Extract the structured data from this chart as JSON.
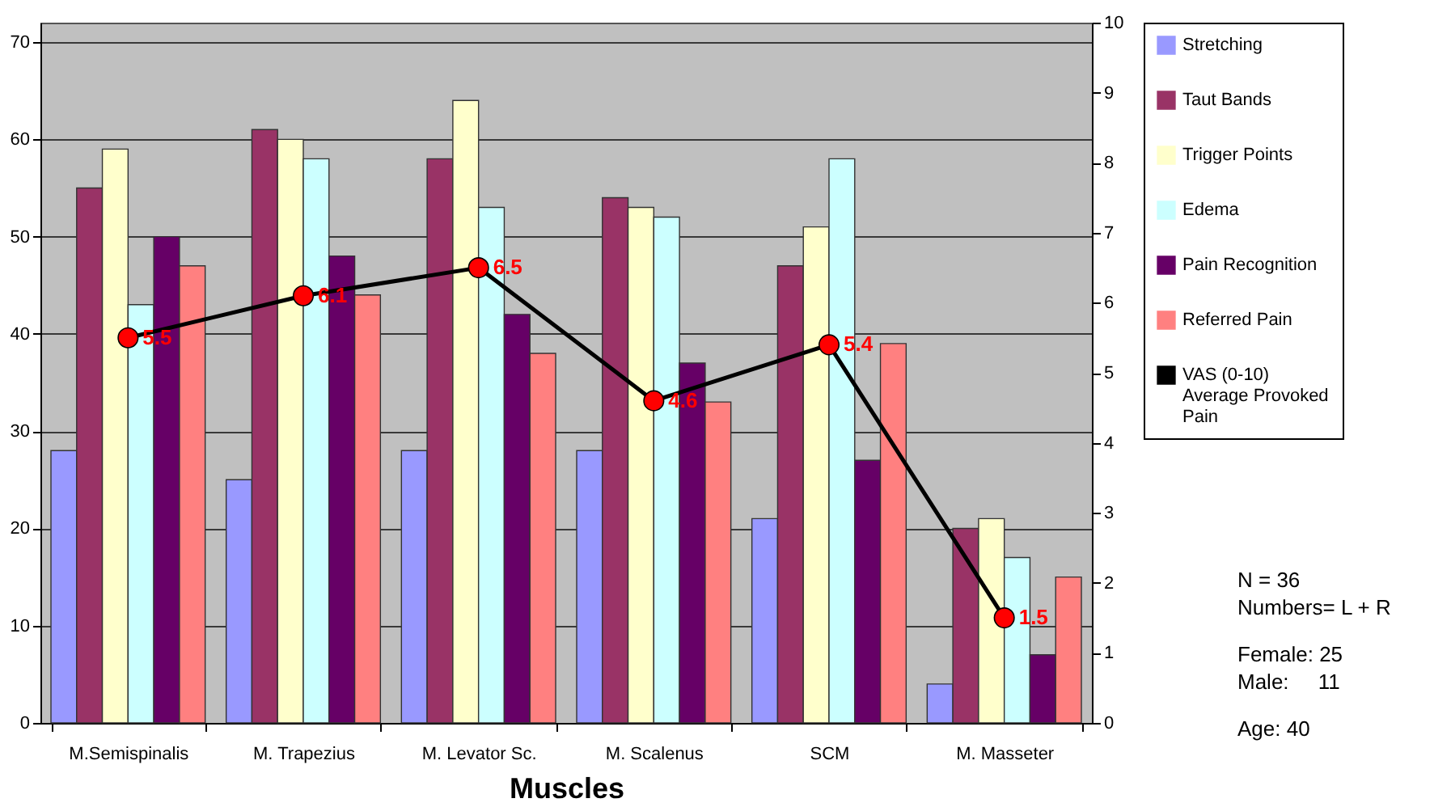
{
  "chart_data": {
    "type": "bar",
    "xlabel": "Muscles",
    "categories": [
      "M.Semispinalis",
      "M. Trapezius",
      "M. Levator Sc.",
      "M. Scalenus",
      "SCM",
      "M. Masseter"
    ],
    "series": [
      {
        "name": "Stretching",
        "color": "#9999ff",
        "values": [
          28,
          25,
          28,
          28,
          21,
          4
        ]
      },
      {
        "name": "Taut Bands",
        "color": "#993366",
        "values": [
          55,
          61,
          58,
          54,
          47,
          20
        ]
      },
      {
        "name": "Trigger Points",
        "color": "#ffffcc",
        "values": [
          59,
          60,
          64,
          53,
          51,
          21
        ]
      },
      {
        "name": "Edema",
        "color": "#ccffff",
        "values": [
          43,
          58,
          53,
          52,
          58,
          17
        ]
      },
      {
        "name": "Pain Recognition",
        "color": "#660066",
        "values": [
          50,
          48,
          42,
          37,
          27,
          7
        ]
      },
      {
        "name": "Referred Pain",
        "color": "#ff8080",
        "values": [
          47,
          44,
          38,
          33,
          39,
          15
        ]
      },
      {
        "name": "VAS (0-10) Average Provoked Pain",
        "type": "line",
        "axis": "y2",
        "color": "#000000",
        "marker": "circle",
        "values": [
          5.5,
          6.1,
          6.5,
          4.6,
          5.4,
          1.5
        ],
        "value_labels": [
          "5.5",
          "6.1",
          "6.5",
          "4.6",
          "5.4",
          "1.5"
        ]
      }
    ],
    "ylim": [
      0,
      72
    ],
    "yticks": [
      0,
      10,
      20,
      30,
      40,
      50,
      60,
      70
    ],
    "y2lim": [
      0,
      10
    ],
    "y2ticks": [
      0,
      1,
      2,
      3,
      4,
      5,
      6,
      7,
      8,
      9,
      10
    ],
    "grid": "y",
    "legend": "right",
    "annotations": [
      "N = 36",
      "Numbers= L + R",
      "Female: 25",
      "Male:     11",
      "Age: 40"
    ]
  }
}
